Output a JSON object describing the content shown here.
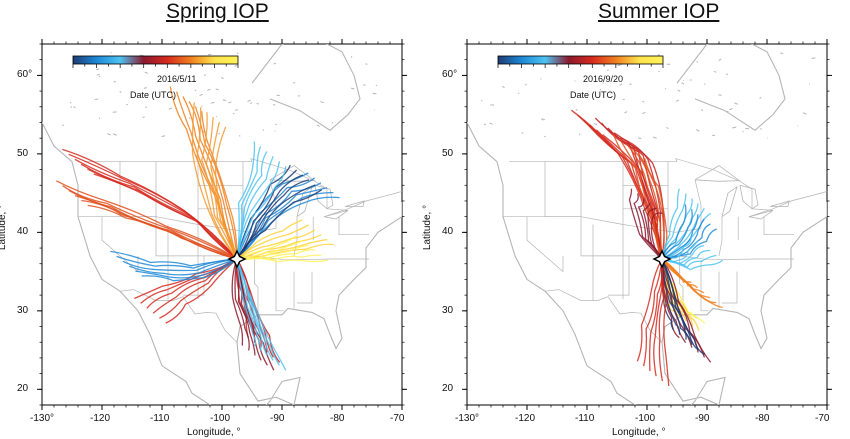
{
  "panels": [
    {
      "title": "Spring IOP",
      "colorbar_date": "2016/5/11",
      "colorbar_label": "Date (UTC)",
      "colorbar_stops": [
        "#1f3b73",
        "#1e88d6",
        "#4dc3f2",
        "#8b1a2e",
        "#d62a1e",
        "#f08020",
        "#ffe34d",
        "#fff25a"
      ],
      "ylabel": "Latitude, °",
      "xlabel": "Longitude, °",
      "xticks": [
        "-130°",
        "-120",
        "-110",
        "-100",
        "-90",
        "-80",
        "-70"
      ],
      "yticks": [
        "20",
        "30",
        "40",
        "50",
        "60°"
      ],
      "site": {
        "lon": -97.5,
        "lat": 36.6
      },
      "trajectory_bundles": [
        {
          "color": "#d62a1e",
          "points": [
            [
              -97.5,
              36.6
            ],
            [
              -105,
              42
            ],
            [
              -115,
              46
            ],
            [
              -124,
              49
            ]
          ]
        },
        {
          "color": "#e0501e",
          "points": [
            [
              -97.5,
              36.6
            ],
            [
              -108,
              40
            ],
            [
              -118,
              43
            ],
            [
              -125,
              45
            ]
          ]
        },
        {
          "color": "#f08020",
          "points": [
            [
              -97.5,
              36.6
            ],
            [
              -100,
              44
            ],
            [
              -104,
              52
            ],
            [
              -106,
              57
            ]
          ]
        },
        {
          "color": "#f39a30",
          "points": [
            [
              -97.5,
              36.6
            ],
            [
              -101,
              42
            ],
            [
              -103,
              49
            ],
            [
              -102,
              55
            ]
          ]
        },
        {
          "color": "#1e88d6",
          "points": [
            [
              -97.5,
              36.6
            ],
            [
              -93,
              42
            ],
            [
              -88,
              45
            ],
            [
              -83,
              46
            ]
          ]
        },
        {
          "color": "#1f3b73",
          "points": [
            [
              -97.5,
              36.6
            ],
            [
              -94,
              41
            ],
            [
              -90,
              45
            ],
            [
              -86,
              47
            ]
          ]
        },
        {
          "color": "#4dc3f2",
          "points": [
            [
              -97.5,
              36.6
            ],
            [
              -96,
              43
            ],
            [
              -93,
              47
            ],
            [
              -92,
              50
            ]
          ]
        },
        {
          "color": "#ffd23a",
          "points": [
            [
              -97.5,
              36.6
            ],
            [
              -93,
              38
            ],
            [
              -88,
              39
            ],
            [
              -84,
              40
            ]
          ]
        },
        {
          "color": "#fff25a",
          "points": [
            [
              -97.5,
              36.6
            ],
            [
              -92,
              37
            ],
            [
              -88,
              37.5
            ],
            [
              -85,
              38
            ]
          ]
        },
        {
          "color": "#c8201e",
          "points": [
            [
              -97.5,
              36.6
            ],
            [
              -96,
              32
            ],
            [
              -94,
              28
            ],
            [
              -93,
              25
            ]
          ]
        },
        {
          "color": "#8b1a2e",
          "points": [
            [
              -97.5,
              36.6
            ],
            [
              -97,
              31
            ],
            [
              -95,
              27
            ],
            [
              -94,
              24
            ]
          ]
        },
        {
          "color": "#4dc3f2",
          "points": [
            [
              -97.5,
              36.6
            ],
            [
              -95,
              30
            ],
            [
              -93,
              26
            ],
            [
              -92,
              24
            ]
          ]
        },
        {
          "color": "#d62a1e",
          "points": [
            [
              -97.5,
              36.6
            ],
            [
              -103,
              34
            ],
            [
              -108,
              32
            ],
            [
              -112,
              30
            ]
          ]
        },
        {
          "color": "#1e88d6",
          "points": [
            [
              -97.5,
              36.6
            ],
            [
              -104,
              35
            ],
            [
              -110,
              35
            ],
            [
              -116,
              36
            ]
          ]
        }
      ]
    },
    {
      "title": "Summer IOP",
      "colorbar_date": "2016/9/20",
      "colorbar_label": "Date (UTC)",
      "colorbar_stops": [
        "#1f3b73",
        "#1e88d6",
        "#4dc3f2",
        "#8b1a2e",
        "#d62a1e",
        "#f08020",
        "#ffe34d",
        "#fff25a"
      ],
      "ylabel": "Latitude, °",
      "xlabel": "Longitude, °",
      "xticks": [
        "-130°",
        "-120",
        "-110",
        "-100",
        "-90",
        "-80",
        "-70"
      ],
      "yticks": [
        "20",
        "30",
        "40",
        "50",
        "60°"
      ],
      "site": {
        "lon": -97.5,
        "lat": 36.6
      },
      "trajectory_bundles": [
        {
          "color": "#d62a1e",
          "points": [
            [
              -97.5,
              36.6
            ],
            [
              -99,
              42
            ],
            [
              -103,
              49
            ],
            [
              -110,
              54
            ]
          ]
        },
        {
          "color": "#c8201e",
          "points": [
            [
              -97.5,
              36.6
            ],
            [
              -98.5,
              43
            ],
            [
              -101,
              50
            ],
            [
              -106,
              53
            ]
          ]
        },
        {
          "color": "#e0501e",
          "points": [
            [
              -97.5,
              36.6
            ],
            [
              -98,
              41
            ],
            [
              -100,
              47
            ],
            [
              -103,
              51
            ]
          ]
        },
        {
          "color": "#4dc3f2",
          "points": [
            [
              -97.5,
              36.6
            ],
            [
              -95,
              39
            ],
            [
              -93,
              42
            ],
            [
              -92,
              44
            ]
          ]
        },
        {
          "color": "#1e88d6",
          "points": [
            [
              -97.5,
              36.6
            ],
            [
              -94,
              38
            ],
            [
              -92,
              40
            ],
            [
              -91,
              42
            ]
          ]
        },
        {
          "color": "#4dc3f2",
          "points": [
            [
              -97.5,
              36.6
            ],
            [
              -94,
              36
            ],
            [
              -92,
              37
            ],
            [
              -90,
              38
            ]
          ]
        },
        {
          "color": "#fff25a",
          "points": [
            [
              -97.5,
              36.6
            ],
            [
              -96,
              33
            ],
            [
              -95,
              31
            ],
            [
              -93,
              30
            ]
          ]
        },
        {
          "color": "#ffd23a",
          "points": [
            [
              -97.5,
              36.6
            ],
            [
              -96.5,
              32.5
            ],
            [
              -95,
              30.5
            ],
            [
              -94,
              29
            ]
          ]
        },
        {
          "color": "#8b1a2e",
          "points": [
            [
              -97.5,
              36.6
            ],
            [
              -96,
              32
            ],
            [
              -94,
              28
            ],
            [
              -92,
              25
            ]
          ]
        },
        {
          "color": "#1f3b73",
          "points": [
            [
              -97.5,
              36.6
            ],
            [
              -96,
              31
            ],
            [
              -94,
              27.5
            ],
            [
              -93,
              26
            ]
          ]
        },
        {
          "color": "#8b1a2e",
          "points": [
            [
              -97.5,
              36.6
            ],
            [
              -100,
              39
            ],
            [
              -101,
              43
            ],
            [
              -100,
              44
            ]
          ]
        },
        {
          "color": "#d62a1e",
          "points": [
            [
              -97.5,
              36.6
            ],
            [
              -98,
              32
            ],
            [
              -99,
              27
            ],
            [
              -99,
              22
            ]
          ]
        },
        {
          "color": "#f08020",
          "points": [
            [
              -97.5,
              36.6
            ],
            [
              -94,
              34
            ],
            [
              -92,
              32.5
            ],
            [
              -90,
              32
            ]
          ]
        }
      ]
    }
  ]
}
